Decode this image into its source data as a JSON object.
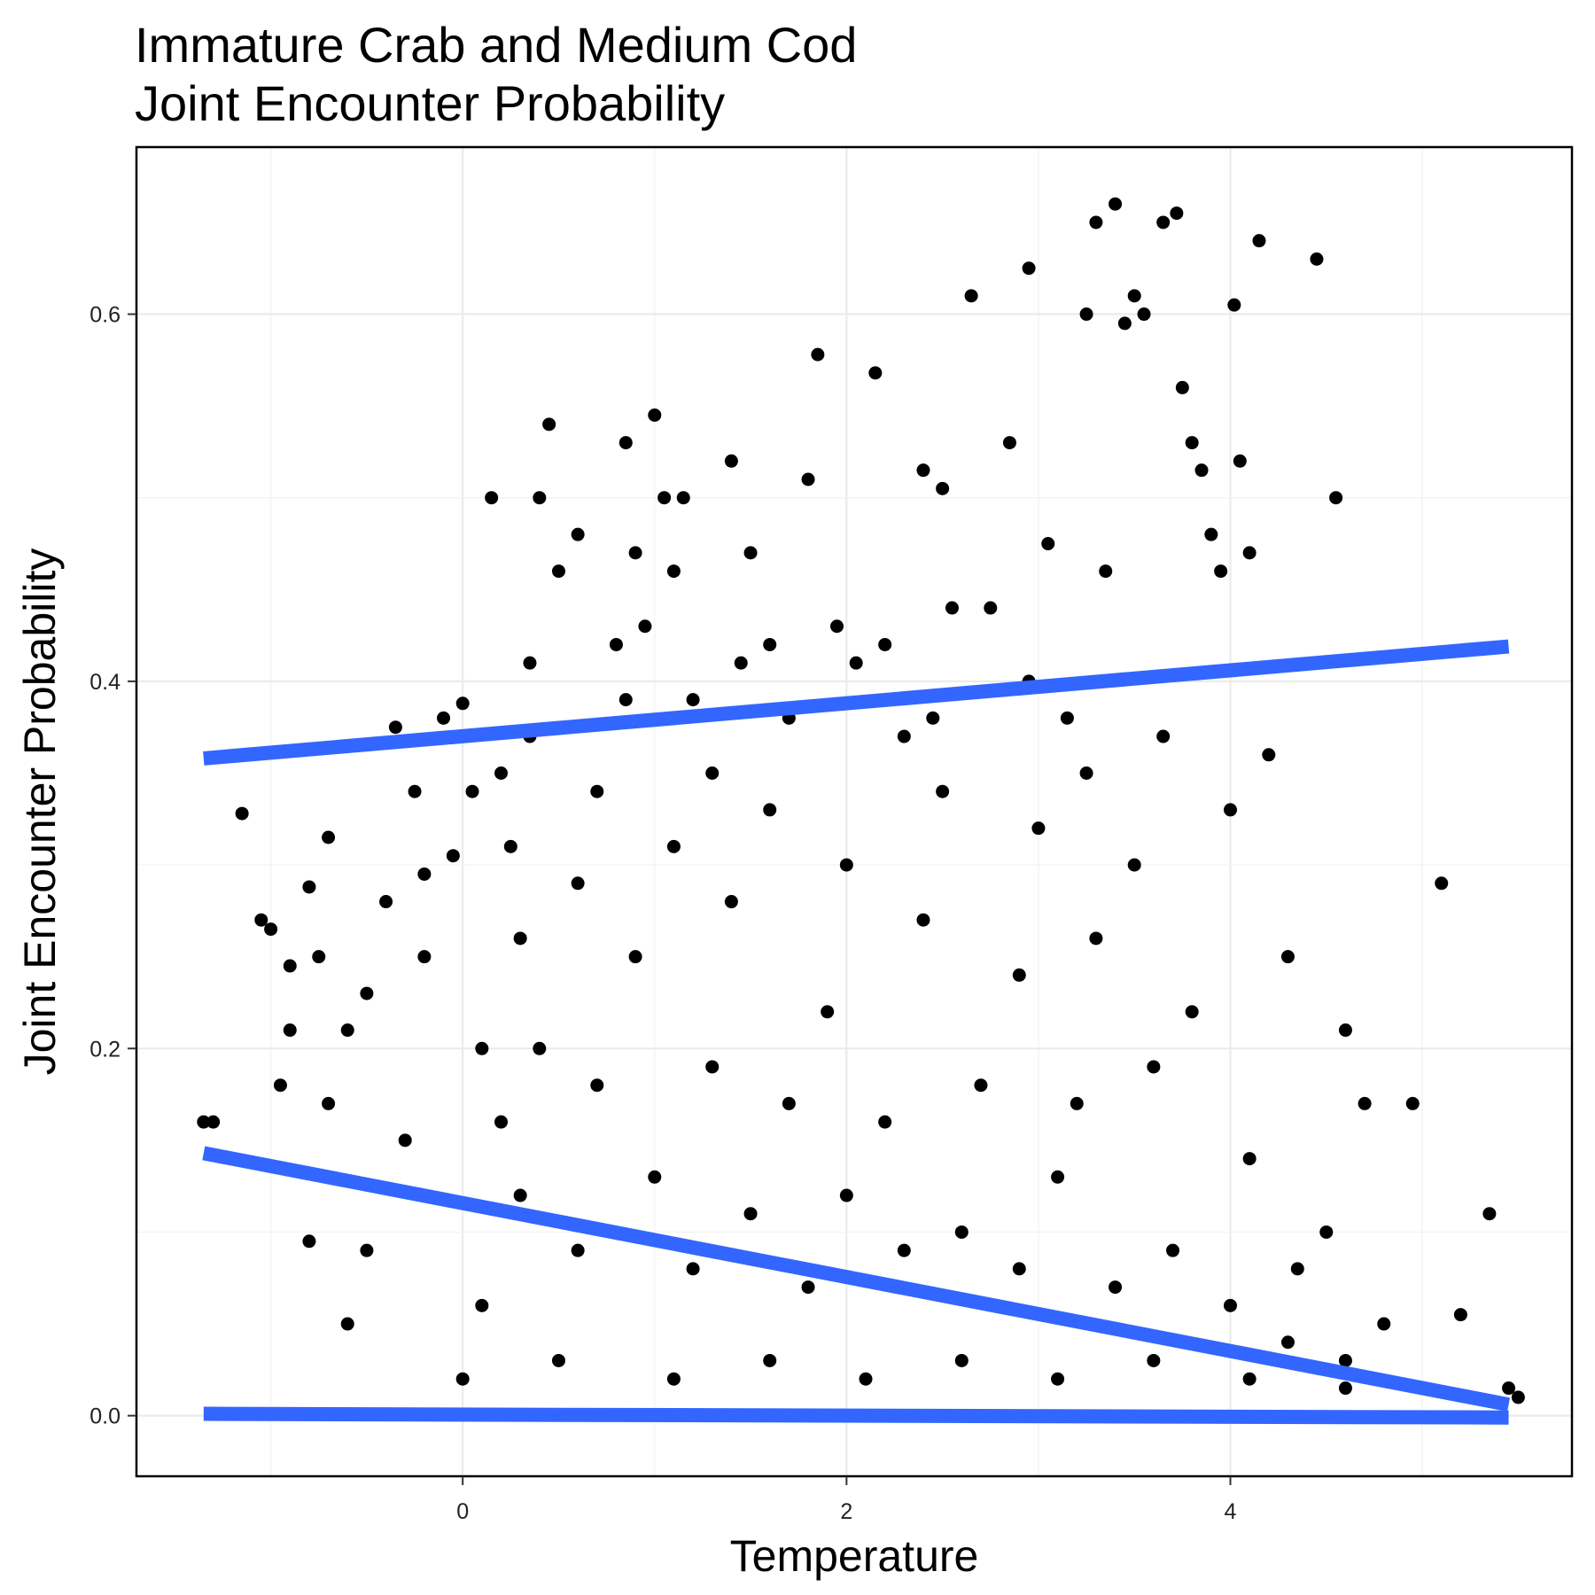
{
  "chart_data": {
    "type": "scatter",
    "title": "Immature Crab and Medium Cod\nJoint Encounter Probability",
    "xlabel": "Temperature",
    "ylabel": "Joint Encounter Probability",
    "xlim": [
      -1.7,
      5.78
    ],
    "ylim": [
      -0.033,
      0.691
    ],
    "x_ticks": [
      0,
      2,
      4
    ],
    "x_tick_labels": [
      "0",
      "2",
      "4"
    ],
    "y_ticks": [
      0.0,
      0.2,
      0.4,
      0.6
    ],
    "y_tick_labels": [
      "0.0",
      "0.2",
      "0.4",
      "0.6"
    ],
    "grid": true,
    "point_color": "#000000",
    "line_color": "#3366FF",
    "points": [
      [
        -1.35,
        0.16
      ],
      [
        -1.15,
        0.328
      ],
      [
        -1.05,
        0.27
      ],
      [
        -0.95,
        0.18
      ],
      [
        -0.9,
        0.245
      ],
      [
        -0.8,
        0.288
      ],
      [
        -0.75,
        0.25
      ],
      [
        -0.7,
        0.315
      ],
      [
        -0.6,
        0.21
      ],
      [
        -0.5,
        0.23
      ],
      [
        -0.4,
        0.28
      ],
      [
        -0.35,
        0.375
      ],
      [
        -0.25,
        0.34
      ],
      [
        -0.2,
        0.295
      ],
      [
        -0.1,
        0.38
      ],
      [
        -0.05,
        0.305
      ],
      [
        0.0,
        0.388
      ],
      [
        0.05,
        0.34
      ],
      [
        0.1,
        0.2
      ],
      [
        0.15,
        0.5
      ],
      [
        0.2,
        0.35
      ],
      [
        0.25,
        0.31
      ],
      [
        0.3,
        0.26
      ],
      [
        0.35,
        0.41
      ],
      [
        0.4,
        0.5
      ],
      [
        0.45,
        0.54
      ],
      [
        0.5,
        0.46
      ],
      [
        0.6,
        0.48
      ],
      [
        0.7,
        0.34
      ],
      [
        0.8,
        0.42
      ],
      [
        0.85,
        0.53
      ],
      [
        0.9,
        0.47
      ],
      [
        0.95,
        0.43
      ],
      [
        1.0,
        0.545
      ],
      [
        1.05,
        0.5
      ],
      [
        1.1,
        0.46
      ],
      [
        1.15,
        0.5
      ],
      [
        1.2,
        0.39
      ],
      [
        1.3,
        0.35
      ],
      [
        1.4,
        0.52
      ],
      [
        1.5,
        0.47
      ],
      [
        1.6,
        0.42
      ],
      [
        1.7,
        0.38
      ],
      [
        1.8,
        0.51
      ],
      [
        1.85,
        0.578
      ],
      [
        1.95,
        0.43
      ],
      [
        2.05,
        0.41
      ],
      [
        2.15,
        0.568
      ],
      [
        2.2,
        0.42
      ],
      [
        2.3,
        0.37
      ],
      [
        2.4,
        0.515
      ],
      [
        2.5,
        0.505
      ],
      [
        2.55,
        0.44
      ],
      [
        2.65,
        0.61
      ],
      [
        2.75,
        0.44
      ],
      [
        2.85,
        0.53
      ],
      [
        2.95,
        0.625
      ],
      [
        3.05,
        0.475
      ],
      [
        3.15,
        0.38
      ],
      [
        3.25,
        0.6
      ],
      [
        3.3,
        0.65
      ],
      [
        3.35,
        0.46
      ],
      [
        3.4,
        0.66
      ],
      [
        3.45,
        0.595
      ],
      [
        3.5,
        0.61
      ],
      [
        3.55,
        0.6
      ],
      [
        3.65,
        0.65
      ],
      [
        3.72,
        0.655
      ],
      [
        3.75,
        0.56
      ],
      [
        3.8,
        0.53
      ],
      [
        3.85,
        0.515
      ],
      [
        3.9,
        0.48
      ],
      [
        3.95,
        0.46
      ],
      [
        4.02,
        0.605
      ],
      [
        4.05,
        0.52
      ],
      [
        4.1,
        0.47
      ],
      [
        4.15,
        0.64
      ],
      [
        4.2,
        0.36
      ],
      [
        4.3,
        0.25
      ],
      [
        4.45,
        0.63
      ],
      [
        4.55,
        0.5
      ],
      [
        4.6,
        0.21
      ],
      [
        4.7,
        0.17
      ],
      [
        4.95,
        0.17
      ],
      [
        5.1,
        0.29
      ],
      [
        5.2,
        0.055
      ],
      [
        5.35,
        0.11
      ],
      [
        5.45,
        0.015
      ],
      [
        5.5,
        0.01
      ],
      [
        4.8,
        0.05
      ],
      [
        4.5,
        0.1
      ],
      [
        4.35,
        0.08
      ],
      [
        -1.3,
        0.16
      ],
      [
        -0.8,
        0.095
      ],
      [
        -0.5,
        0.09
      ],
      [
        0.1,
        0.06
      ],
      [
        0.3,
        0.12
      ],
      [
        0.6,
        0.09
      ],
      [
        1.0,
        0.13
      ],
      [
        1.2,
        0.08
      ],
      [
        1.5,
        0.11
      ],
      [
        1.8,
        0.07
      ],
      [
        2.0,
        0.12
      ],
      [
        2.3,
        0.09
      ],
      [
        2.6,
        0.1
      ],
      [
        2.9,
        0.08
      ],
      [
        3.1,
        0.13
      ],
      [
        3.4,
        0.07
      ],
      [
        3.7,
        0.09
      ],
      [
        4.0,
        0.06
      ],
      [
        4.3,
        0.04
      ],
      [
        4.6,
        0.03
      ],
      [
        -0.3,
        0.15
      ],
      [
        0.4,
        0.2
      ],
      [
        0.9,
        0.25
      ],
      [
        1.4,
        0.28
      ],
      [
        1.9,
        0.22
      ],
      [
        2.4,
        0.27
      ],
      [
        2.9,
        0.24
      ],
      [
        3.3,
        0.26
      ],
      [
        3.8,
        0.22
      ],
      [
        4.1,
        0.14
      ],
      [
        -0.6,
        0.05
      ],
      [
        0.0,
        0.02
      ],
      [
        0.5,
        0.03
      ],
      [
        1.1,
        0.02
      ],
      [
        1.6,
        0.03
      ],
      [
        2.1,
        0.02
      ],
      [
        2.6,
        0.03
      ],
      [
        3.1,
        0.02
      ],
      [
        3.6,
        0.03
      ],
      [
        4.1,
        0.02
      ],
      [
        4.6,
        0.015
      ],
      [
        0.2,
        0.16
      ],
      [
        0.7,
        0.18
      ],
      [
        1.3,
        0.19
      ],
      [
        1.7,
        0.17
      ],
      [
        2.2,
        0.16
      ],
      [
        2.7,
        0.18
      ],
      [
        3.2,
        0.17
      ],
      [
        3.6,
        0.19
      ],
      [
        -0.9,
        0.21
      ],
      [
        -0.2,
        0.25
      ],
      [
        0.6,
        0.29
      ],
      [
        1.1,
        0.31
      ],
      [
        1.6,
        0.33
      ],
      [
        2.0,
        0.3
      ],
      [
        2.5,
        0.34
      ],
      [
        3.0,
        0.32
      ],
      [
        3.5,
        0.3
      ],
      [
        -1.0,
        0.265
      ],
      [
        -0.7,
        0.17
      ],
      [
        0.35,
        0.37
      ],
      [
        0.85,
        0.39
      ],
      [
        1.45,
        0.41
      ],
      [
        2.45,
        0.38
      ],
      [
        2.95,
        0.4
      ],
      [
        3.25,
        0.35
      ],
      [
        3.65,
        0.37
      ],
      [
        4.0,
        0.33
      ]
    ],
    "series": [
      {
        "type": "line",
        "x": [
          -1.35,
          5.45
        ],
        "y": [
          0.358,
          0.419
        ]
      },
      {
        "type": "line",
        "x": [
          -1.35,
          5.45
        ],
        "y": [
          0.143,
          0.006
        ]
      },
      {
        "type": "line",
        "x": [
          -1.35,
          5.45
        ],
        "y": [
          0.001,
          -0.001
        ]
      }
    ]
  }
}
